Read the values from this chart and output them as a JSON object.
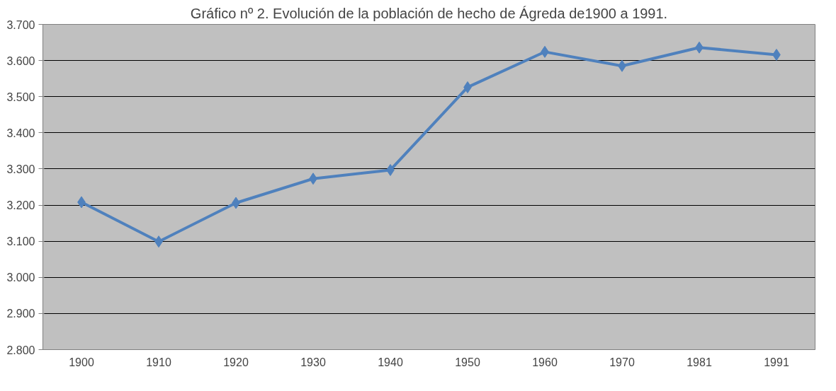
{
  "chart_data": {
    "type": "line",
    "title": "Gráfico nº 2. Evolución de la población de hecho de Ágreda de1900 a 1991.",
    "categories": [
      "1900",
      "1910",
      "1920",
      "1930",
      "1940",
      "1950",
      "1960",
      "1970",
      "1981",
      "1991"
    ],
    "series": [
      {
        "color": "#4f81bd",
        "values": [
          3208,
          3099,
          3206,
          3273,
          3297,
          3526,
          3624,
          3585,
          3636,
          3616
        ]
      }
    ],
    "ylim": [
      2800,
      3700
    ],
    "yticks": [
      {
        "value": 2800,
        "label": "2.800"
      },
      {
        "value": 2900,
        "label": "2.900"
      },
      {
        "value": 3000,
        "label": "3.000"
      },
      {
        "value": 3100,
        "label": "3.100"
      },
      {
        "value": 3200,
        "label": "3.200"
      },
      {
        "value": 3300,
        "label": "3.300"
      },
      {
        "value": 3400,
        "label": "3.400"
      },
      {
        "value": 3500,
        "label": "3.500"
      },
      {
        "value": 3600,
        "label": "3.600"
      },
      {
        "value": 3700,
        "label": "3.700"
      }
    ],
    "grid": "y",
    "marker": "diamond",
    "line_style": "solid"
  }
}
